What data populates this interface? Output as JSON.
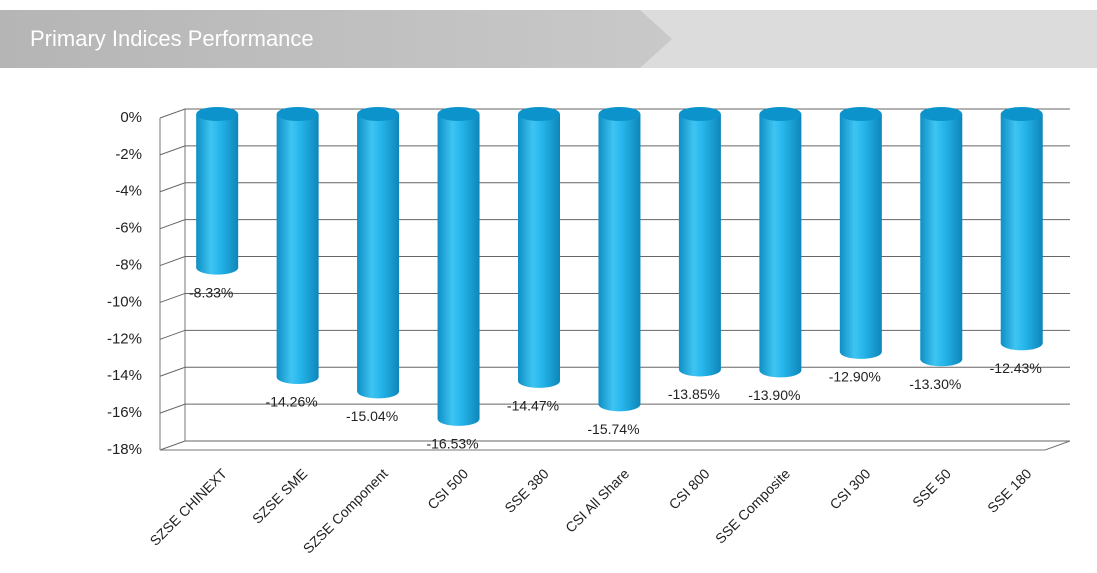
{
  "header": {
    "title": "Primary Indices Performance"
  },
  "chart_data": {
    "type": "bar",
    "categories": [
      "SZSE CHINEXT",
      "SZSE SME",
      "SZSE Component",
      "CSI 500",
      "SSE 380",
      "CSI All Share",
      "CSI 800",
      "SSE Composite",
      "CSI 300",
      "SSE 50",
      "SSE 180"
    ],
    "values": [
      -8.33,
      -14.26,
      -15.04,
      -16.53,
      -14.47,
      -15.74,
      -13.85,
      -13.9,
      -12.9,
      -13.3,
      -12.43
    ],
    "value_labels": [
      "-8.33%",
      "-14.26%",
      "-15.04%",
      "-16.53%",
      "-14.47%",
      "-15.74%",
      "-13.85%",
      "-13.90%",
      "-12.90%",
      "-13.30%",
      "-12.43%"
    ],
    "color": "#1aaee6",
    "ylim": [
      -18,
      0
    ],
    "yticks": [
      {
        "value": 0,
        "label": "0%"
      },
      {
        "value": -2,
        "label": "-2%"
      },
      {
        "value": -4,
        "label": "-4%"
      },
      {
        "value": -6,
        "label": "-6%"
      },
      {
        "value": -8,
        "label": "-8%"
      },
      {
        "value": -10,
        "label": "-10%"
      },
      {
        "value": -12,
        "label": "-12%"
      },
      {
        "value": -14,
        "label": "-14%"
      },
      {
        "value": -16,
        "label": "-16%"
      },
      {
        "value": -18,
        "label": "-18%"
      }
    ],
    "grid": true
  }
}
